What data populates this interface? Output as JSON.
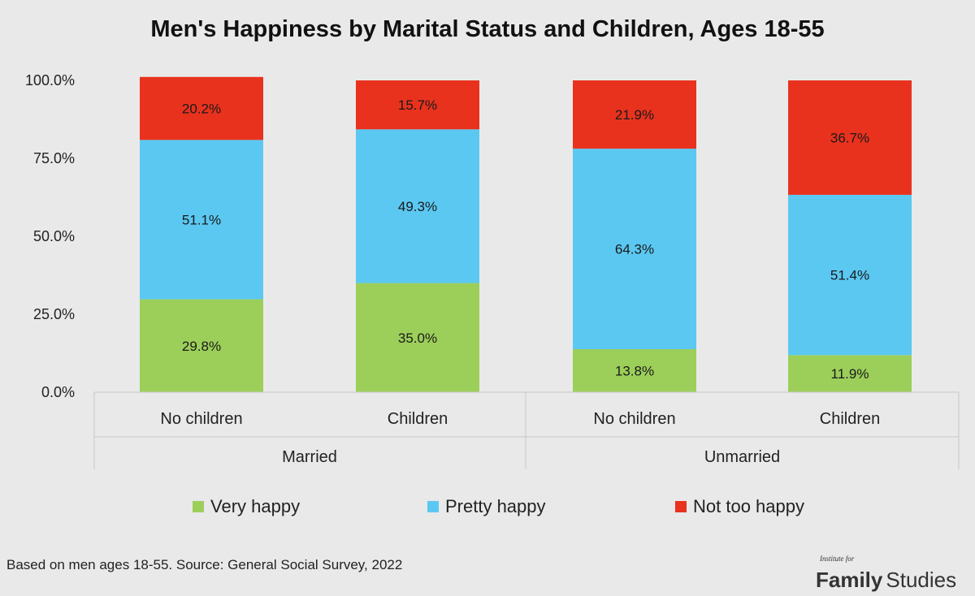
{
  "chart_data": {
    "type": "bar",
    "stacked": true,
    "title": "Men's Happiness by Marital Status and Children, Ages 18-55",
    "categories": [
      "No children",
      "Children",
      "No children",
      "Children"
    ],
    "groups": [
      {
        "label": "Married",
        "category_indices": [
          0,
          1
        ]
      },
      {
        "label": "Unmarried",
        "category_indices": [
          2,
          3
        ]
      }
    ],
    "series": [
      {
        "name": "Very happy",
        "color": "#9ccf5a",
        "values": [
          29.8,
          35.0,
          13.8,
          11.9
        ]
      },
      {
        "name": "Pretty happy",
        "color": "#5bc8f2",
        "values": [
          51.1,
          49.3,
          64.3,
          51.4
        ]
      },
      {
        "name": "Not too happy",
        "color": "#e8321e",
        "values": [
          20.2,
          15.7,
          21.9,
          36.7
        ]
      }
    ],
    "y_ticks": [
      "0.0%",
      "25.0%",
      "50.0%",
      "75.0%",
      "100.0%"
    ],
    "ylim": [
      0,
      100
    ],
    "grid": false,
    "legend_position": "bottom"
  },
  "footnote": "Based on men ages 18-55. Source: General Social Survey, 2022",
  "logo": {
    "small": "Institute for",
    "family": "Family",
    "studies": "Studies"
  }
}
